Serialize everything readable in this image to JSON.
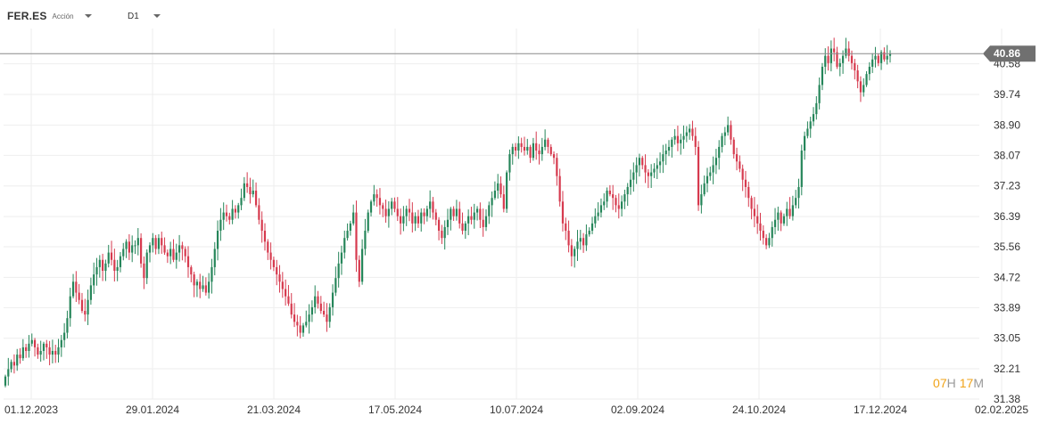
{
  "header": {
    "symbol": "FER.ES",
    "symbol_type": "Acción",
    "timeframe": "D1"
  },
  "countdown": {
    "hours": "07",
    "hours_unit": "H",
    "minutes": "17",
    "minutes_unit": "M"
  },
  "colors": {
    "up": "#26865a",
    "down": "#d63a4e",
    "grid": "#eeeeee",
    "price_line": "#8a8a8a",
    "price_tag": "#707070"
  },
  "chart_data": {
    "type": "candlestick",
    "symbol": "FER.ES",
    "timeframe": "D1",
    "current_price": 40.86,
    "current_price_label": "40.86",
    "y_ticks": [
      "40.58",
      "39.74",
      "38.90",
      "38.07",
      "37.23",
      "36.39",
      "35.56",
      "34.72",
      "33.89",
      "33.05",
      "32.21",
      "31.38"
    ],
    "ylim": [
      31.38,
      41.55
    ],
    "x_ticks": [
      "01.12.2023",
      "29.01.2024",
      "21.03.2024",
      "17.05.2024",
      "10.07.2024",
      "02.09.2024",
      "24.10.2024",
      "17.12.2024",
      "02.02.2025"
    ],
    "closes": [
      32.0,
      32.2,
      32.4,
      32.3,
      32.6,
      32.5,
      32.8,
      32.7,
      32.9,
      33.0,
      32.8,
      32.6,
      32.7,
      32.9,
      32.8,
      32.6,
      32.7,
      32.6,
      32.8,
      33.0,
      33.2,
      33.6,
      34.2,
      34.6,
      34.3,
      34.1,
      33.8,
      33.7,
      34.1,
      34.5,
      34.8,
      35.0,
      35.2,
      34.9,
      35.1,
      35.4,
      35.2,
      34.9,
      35.0,
      35.3,
      35.5,
      35.7,
      35.4,
      35.6,
      35.6,
      35.8,
      35.1,
      34.7,
      35.4,
      35.6,
      35.8,
      35.5,
      35.8,
      35.6,
      35.4,
      35.3,
      35.5,
      35.2,
      35.4,
      35.6,
      35.5,
      35.3,
      35.0,
      34.8,
      34.5,
      34.6,
      34.4,
      34.5,
      34.3,
      34.6,
      35.0,
      35.5,
      36.0,
      36.3,
      36.5,
      36.4,
      36.3,
      36.6,
      36.5,
      36.7,
      36.9,
      37.3,
      37.2,
      37.0,
      37.1,
      36.7,
      36.3,
      36.0,
      35.7,
      35.4,
      35.2,
      35.0,
      34.8,
      34.6,
      34.4,
      34.2,
      34.0,
      33.7,
      33.5,
      33.4,
      33.2,
      33.4,
      33.5,
      33.7,
      33.9,
      34.2,
      34.0,
      33.8,
      33.7,
      33.5,
      33.9,
      34.3,
      34.7,
      35.1,
      35.4,
      35.8,
      36.0,
      36.2,
      36.5,
      35.2,
      34.6,
      35.5,
      36.0,
      36.5,
      36.8,
      37.0,
      36.9,
      36.7,
      36.6,
      36.4,
      36.6,
      36.8,
      36.6,
      36.4,
      36.2,
      36.4,
      36.6,
      36.5,
      36.2,
      36.4,
      36.2,
      36.5,
      36.4,
      36.6,
      36.8,
      36.5,
      36.3,
      36.0,
      35.8,
      36.1,
      36.3,
      36.6,
      36.4,
      36.6,
      36.2,
      36.0,
      36.2,
      36.4,
      36.3,
      36.5,
      36.6,
      36.3,
      36.1,
      36.4,
      36.7,
      36.9,
      37.1,
      37.3,
      37.0,
      36.6,
      37.6,
      38.1,
      38.3,
      38.2,
      38.4,
      38.3,
      38.2,
      38.3,
      38.0,
      38.4,
      38.2,
      38.1,
      38.3,
      38.5,
      38.3,
      38.1,
      38.0,
      37.5,
      36.8,
      36.2,
      36.0,
      35.6,
      35.3,
      35.5,
      35.7,
      35.8,
      35.6,
      35.9,
      36.0,
      36.2,
      36.4,
      36.5,
      36.7,
      36.8,
      37.1,
      37.0,
      36.9,
      36.7,
      36.6,
      36.8,
      37.0,
      37.2,
      37.4,
      37.6,
      37.8,
      38.0,
      37.8,
      37.6,
      37.5,
      37.6,
      37.7,
      37.8,
      37.9,
      38.1,
      38.2,
      38.3,
      38.5,
      38.6,
      38.4,
      38.5,
      38.6,
      38.7,
      38.8,
      38.6,
      38.3,
      36.7,
      37.0,
      37.3,
      37.5,
      37.6,
      37.8,
      38.0,
      38.3,
      38.6,
      38.7,
      38.9,
      38.5,
      38.1,
      37.9,
      37.7,
      37.4,
      37.2,
      36.9,
      36.6,
      36.4,
      36.2,
      36.0,
      35.8,
      35.6,
      35.8,
      36.1,
      36.3,
      36.5,
      36.2,
      36.4,
      36.6,
      36.4,
      36.7,
      36.9,
      37.2,
      38.2,
      38.6,
      38.8,
      39.0,
      39.2,
      39.5,
      40.0,
      40.5,
      40.8,
      40.6,
      41.0,
      40.9,
      40.5,
      40.6,
      40.8,
      41.0,
      40.8,
      40.6,
      40.4,
      40.1,
      39.8,
      40.0,
      40.3,
      40.5,
      40.7,
      40.8,
      40.6,
      40.9,
      40.7,
      40.8,
      40.86
    ]
  }
}
